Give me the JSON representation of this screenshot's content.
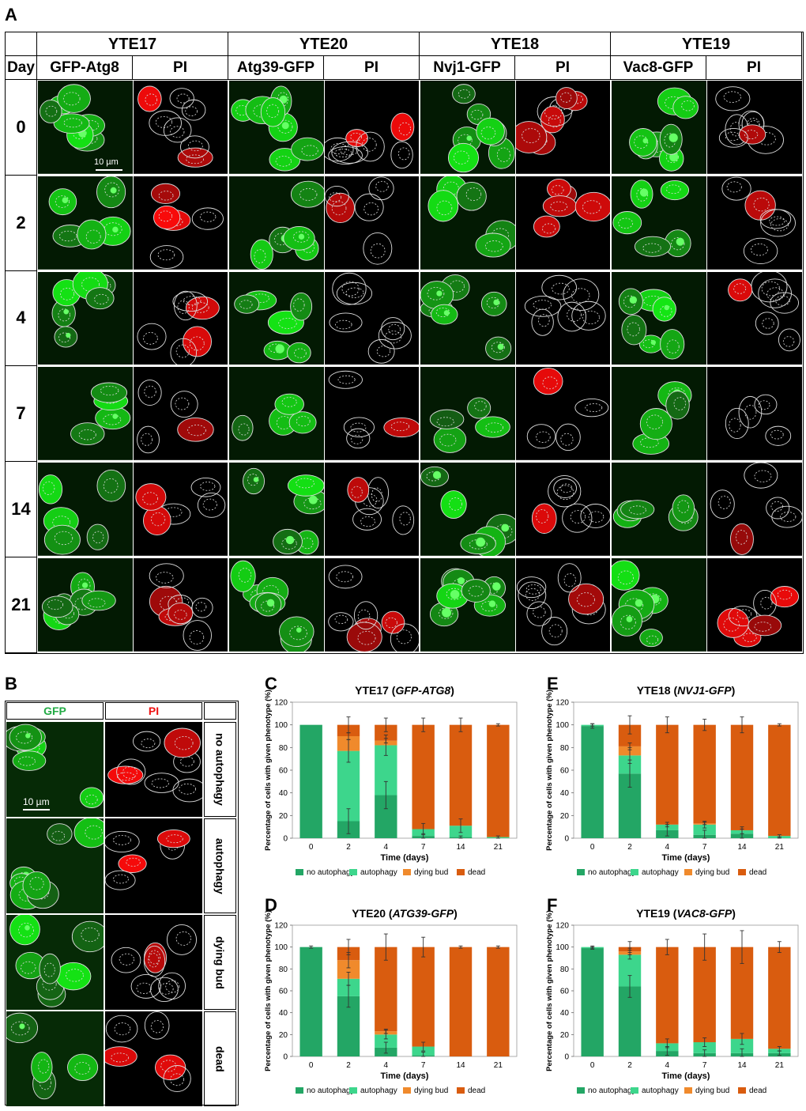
{
  "panel_labels": {
    "a": "A",
    "b": "B",
    "c": "C",
    "d": "D",
    "e": "E",
    "f": "F"
  },
  "panel_a": {
    "day_header": "Day",
    "strains": [
      {
        "name": "YTE17",
        "channels": [
          "GFP-Atg8",
          "PI"
        ]
      },
      {
        "name": "YTE20",
        "channels": [
          "Atg39-GFP",
          "PI"
        ]
      },
      {
        "name": "YTE18",
        "channels": [
          "Nvj1-GFP",
          "PI"
        ]
      },
      {
        "name": "YTE19",
        "channels": [
          "Vac8-GFP",
          "PI"
        ]
      }
    ],
    "days": [
      "0",
      "2",
      "4",
      "7",
      "14",
      "21"
    ],
    "scale_bar": "10 µm"
  },
  "panel_b": {
    "gfp_header": "GFP",
    "pi_header": "PI",
    "rows": [
      "no autophagy",
      "autophagy",
      "dying bud",
      "dead"
    ],
    "scale_bar": "10 µm",
    "colors": {
      "gfp_text": "#22aa44",
      "pi_text": "#ee1111"
    }
  },
  "chart_data": [
    {
      "type": "bar",
      "panel": "C",
      "title": "YTE17 (GFP-ATG8)",
      "title_plain": "YTE17 (",
      "title_italic": "GFP-ATG8",
      "title_end": ")",
      "xlabel": "Time (days)",
      "ylabel": "Percentage of cells with given phenotype (%)",
      "ylim": [
        0,
        120
      ],
      "yticks": [
        "0",
        "20",
        "40",
        "60",
        "80",
        "100",
        "120"
      ],
      "categories": [
        "0",
        "2",
        "4",
        "7",
        "14",
        "21"
      ],
      "stacked": true,
      "series": [
        {
          "name": "no autophagy",
          "color": "#23a665",
          "values": [
            100,
            15,
            38,
            2,
            1,
            0
          ],
          "err": [
            0,
            11,
            12,
            2,
            1,
            0
          ]
        },
        {
          "name": "autophagy",
          "color": "#3dd68c",
          "values": [
            0,
            62,
            44,
            6,
            10,
            1
          ],
          "err": [
            0,
            10,
            9,
            5,
            6,
            1
          ]
        },
        {
          "name": "dying bud",
          "color": "#f08a2c",
          "values": [
            0,
            13,
            4,
            0,
            0,
            0
          ],
          "err": [
            0,
            3,
            2,
            0,
            0,
            0
          ]
        },
        {
          "name": "dead",
          "color": "#d95c0f",
          "values": [
            0,
            10,
            14,
            92,
            89,
            99
          ],
          "err": [
            0,
            7,
            6,
            6,
            6,
            1
          ]
        }
      ]
    },
    {
      "type": "bar",
      "panel": "D",
      "title": "YTE20 (ATG39-GFP)",
      "title_plain": "YTE20 (",
      "title_italic": "ATG39-GFP",
      "title_end": ")",
      "xlabel": "Time (days)",
      "ylabel": "Percentage of cells with given phenotype (%)",
      "ylim": [
        0,
        120
      ],
      "yticks": [
        "0",
        "20",
        "40",
        "60",
        "80",
        "100",
        "120"
      ],
      "categories": [
        "0",
        "2",
        "4",
        "7",
        "14",
        "21"
      ],
      "stacked": true,
      "series": [
        {
          "name": "no autophagy",
          "color": "#23a665",
          "values": [
            100,
            55,
            8,
            1,
            0,
            0
          ],
          "err": [
            1,
            10,
            5,
            3,
            0,
            0
          ]
        },
        {
          "name": "autophagy",
          "color": "#3dd68c",
          "values": [
            0,
            16,
            12,
            8,
            0,
            0
          ],
          "err": [
            0,
            6,
            4,
            4,
            0,
            0
          ]
        },
        {
          "name": "dying bud",
          "color": "#f08a2c",
          "values": [
            0,
            17,
            3,
            0,
            0,
            0
          ],
          "err": [
            0,
            7,
            2,
            0,
            0,
            0
          ]
        },
        {
          "name": "dead",
          "color": "#d95c0f",
          "values": [
            0,
            12,
            77,
            91,
            100,
            100
          ],
          "err": [
            0,
            7,
            12,
            9,
            1,
            1
          ]
        }
      ]
    },
    {
      "type": "bar",
      "panel": "E",
      "title": "YTE18 (NVJ1-GFP)",
      "title_plain": "YTE18 (",
      "title_italic": "NVJ1-GFP",
      "title_end": ")",
      "xlabel": "Time (days)",
      "ylabel": "Percentage of cells with given phenotype (%)",
      "ylim": [
        0,
        120
      ],
      "yticks": [
        "0",
        "20",
        "40",
        "60",
        "80",
        "100",
        "120"
      ],
      "categories": [
        "0",
        "2",
        "4",
        "7",
        "14",
        "21"
      ],
      "stacked": true,
      "series": [
        {
          "name": "no autophagy",
          "color": "#23a665",
          "values": [
            99,
            57,
            7,
            3,
            4,
            0
          ],
          "err": [
            2,
            12,
            5,
            4,
            4,
            1
          ]
        },
        {
          "name": "autophagy",
          "color": "#3dd68c",
          "values": [
            1,
            16,
            5,
            9,
            3,
            2
          ],
          "err": [
            1,
            7,
            2,
            3,
            3,
            1
          ]
        },
        {
          "name": "dying bud",
          "color": "#f08a2c",
          "values": [
            0,
            8,
            0,
            1,
            0,
            0
          ],
          "err": [
            0,
            3,
            0,
            1,
            0,
            0
          ]
        },
        {
          "name": "dead",
          "color": "#d95c0f",
          "values": [
            0,
            19,
            88,
            87,
            93,
            98
          ],
          "err": [
            0,
            8,
            7,
            5,
            7,
            1
          ]
        }
      ]
    },
    {
      "type": "bar",
      "panel": "F",
      "title": "YTE19 (VAC8-GFP)",
      "title_plain": "YTE19 (",
      "title_italic": "VAC8-GFP",
      "title_end": ")",
      "xlabel": "Time (days)",
      "ylabel": "Percentage of cells with given phenotype (%)",
      "ylim": [
        0,
        120
      ],
      "yticks": [
        "0",
        "20",
        "40",
        "60",
        "80",
        "100",
        "120"
      ],
      "categories": [
        "0",
        "2",
        "4",
        "7",
        "14",
        "21"
      ],
      "stacked": true,
      "series": [
        {
          "name": "no autophagy",
          "color": "#23a665",
          "values": [
            99,
            64,
            5,
            3,
            3,
            3
          ],
          "err": [
            1,
            10,
            4,
            3,
            4,
            2
          ]
        },
        {
          "name": "autophagy",
          "color": "#3dd68c",
          "values": [
            1,
            29,
            7,
            10,
            13,
            4
          ],
          "err": [
            1,
            4,
            4,
            4,
            5,
            2
          ]
        },
        {
          "name": "dying bud",
          "color": "#f08a2c",
          "values": [
            0,
            3,
            0,
            0,
            0,
            0
          ],
          "err": [
            0,
            3,
            0,
            0,
            0,
            0
          ]
        },
        {
          "name": "dead",
          "color": "#d95c0f",
          "values": [
            0,
            4,
            88,
            87,
            84,
            93
          ],
          "err": [
            0,
            5,
            7,
            12,
            15,
            5
          ]
        }
      ]
    }
  ]
}
